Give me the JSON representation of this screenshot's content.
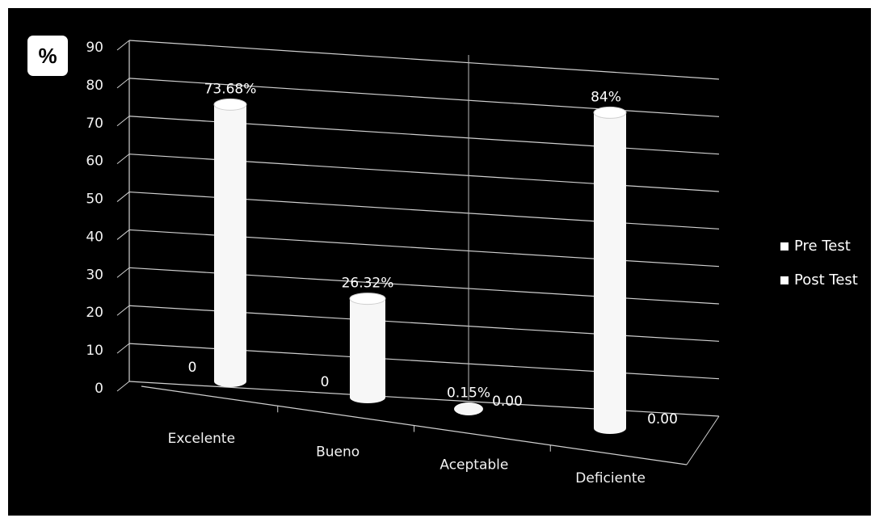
{
  "chart_data": {
    "type": "bar",
    "ylabel": "%",
    "ylim": [
      0,
      90
    ],
    "yticks": [
      "0",
      "10",
      "20",
      "30",
      "40",
      "50",
      "60",
      "70",
      "80",
      "90"
    ],
    "categories": [
      "Excelente",
      "Bueno",
      "Aceptable",
      "Deficiente"
    ],
    "series": [
      {
        "name": "Pre Test",
        "values": [
          73.68,
          26.32,
          0.15,
          84
        ],
        "labels": [
          "73.68%",
          "26.32%",
          "0.15%",
          "84%"
        ]
      },
      {
        "name": "Post Test",
        "values": [
          0,
          0,
          0,
          0
        ],
        "labels": [
          "0",
          "0",
          "0.00",
          "0.00"
        ]
      }
    ],
    "legend_position": "right",
    "grid": true,
    "style": "3d-cylinder",
    "colors": {
      "background": "#000000",
      "bars": "#ffffff",
      "text": "#ffffff",
      "grid": "#d9d9d9"
    }
  }
}
